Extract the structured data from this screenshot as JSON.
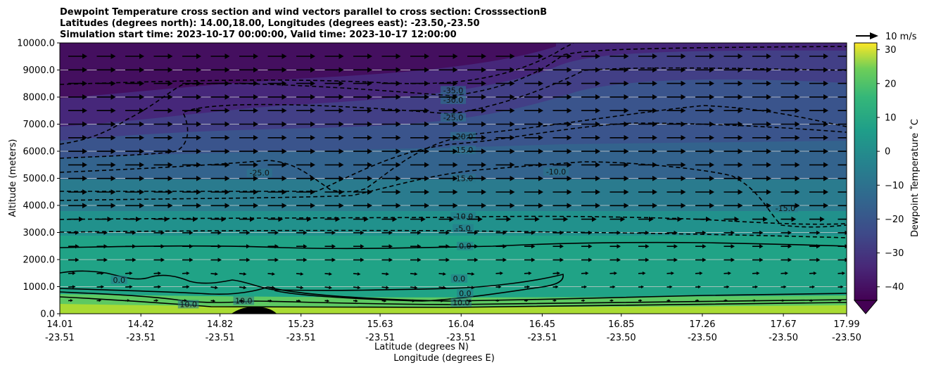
{
  "chart_data": {
    "type": "contour",
    "title_lines": [
      "Dewpoint Temperature cross section and wind vectors parallel to cross section: CrosssectionB",
      "Latitudes (degrees north): 14.00,18.00, Longitudes (degrees east): -23.50,-23.50",
      "Simulation start time: 2023-10-17 00:00:00, Valid time: 2023-10-17 12:00:00"
    ],
    "ylabel": "Altitude (meters)",
    "xlabel_lat": "Latitude (degrees N)",
    "xlabel_lon": "Longitude (degrees E)",
    "ylim": [
      0,
      10000
    ],
    "y_ticks": [
      "0.0",
      "1000.0",
      "2000.0",
      "3000.0",
      "4000.0",
      "5000.0",
      "6000.0",
      "7000.0",
      "8000.0",
      "9000.0",
      "10000.0"
    ],
    "x_ticks": [
      {
        "lat": "14.01",
        "lon": "-23.51"
      },
      {
        "lat": "14.42",
        "lon": "-23.51"
      },
      {
        "lat": "14.82",
        "lon": "-23.51"
      },
      {
        "lat": "15.23",
        "lon": "-23.51"
      },
      {
        "lat": "15.63",
        "lon": "-23.51"
      },
      {
        "lat": "16.04",
        "lon": "-23.51"
      },
      {
        "lat": "16.45",
        "lon": "-23.51"
      },
      {
        "lat": "16.85",
        "lon": "-23.50"
      },
      {
        "lat": "17.26",
        "lon": "-23.50"
      },
      {
        "lat": "17.67",
        "lon": "-23.50"
      },
      {
        "lat": "17.99",
        "lon": "-23.50"
      }
    ],
    "grid": true,
    "colorbar": {
      "label": "Dewpoint Temperature ˚C",
      "range": [
        -44,
        32
      ],
      "ticks": [
        "30",
        "20",
        "10",
        "0",
        "−10",
        "−20",
        "−30",
        "−40"
      ],
      "extend": "min",
      "colormap": "viridis"
    },
    "wind_key": {
      "label": "10 m/s",
      "speed_ms": 10
    },
    "contour_levels": [
      -35,
      -30,
      -25,
      -20,
      -15,
      -10,
      -5,
      0,
      10
    ],
    "contour_labels": [
      {
        "text": "-35.0",
        "x": 16.0,
        "y": 8200
      },
      {
        "text": "-30.0",
        "x": 16.0,
        "y": 7850
      },
      {
        "text": "-25.0",
        "x": 16.0,
        "y": 7200
      },
      {
        "text": "-20.0",
        "x": 16.05,
        "y": 6500
      },
      {
        "text": "-15.0",
        "x": 16.05,
        "y": 6000
      },
      {
        "text": "-25.0",
        "x": 15.02,
        "y": 5150
      },
      {
        "text": "-10.0",
        "x": 16.52,
        "y": 5200
      },
      {
        "text": "-15.0",
        "x": 16.05,
        "y": 4950
      },
      {
        "text": "-15.0",
        "x": 17.68,
        "y": 3850
      },
      {
        "text": "-10.0",
        "x": 16.05,
        "y": 3550
      },
      {
        "text": "-5.0",
        "x": 16.05,
        "y": 3100
      },
      {
        "text": "0.0",
        "x": 16.06,
        "y": 2450
      },
      {
        "text": "0.0",
        "x": 14.31,
        "y": 1200
      },
      {
        "text": "0.0",
        "x": 16.03,
        "y": 1250
      },
      {
        "text": "0.0",
        "x": 16.06,
        "y": 700
      },
      {
        "text": "10.0",
        "x": 16.04,
        "y": 370
      },
      {
        "text": "10.0",
        "x": 14.66,
        "y": 300
      },
      {
        "text": "10.0",
        "x": 14.94,
        "y": 430
      }
    ],
    "wind_vectors": "mostly westerly/eastward, strongest (~10 m/s) aloft between 4000 and 10000 m, weakening below 3000 m"
  }
}
